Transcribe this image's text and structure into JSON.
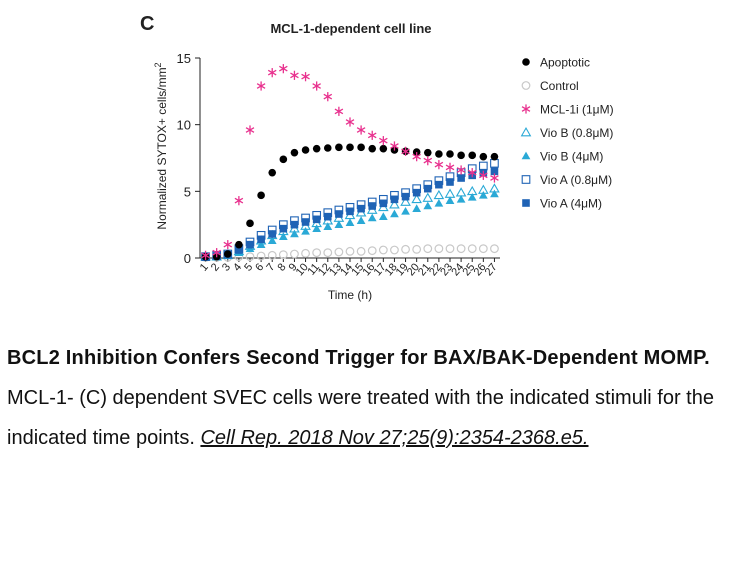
{
  "panel": {
    "label": "C"
  },
  "chart_data": {
    "type": "scatter",
    "title": "MCL-1-dependent cell line",
    "xlabel": "Time (h)",
    "ylabel": "Normalized SYTOX+ cells/mm",
    "ylabel_superscript": "2",
    "xlim": [
      0.5,
      27.5
    ],
    "ylim": [
      0,
      15
    ],
    "yticks": [
      0,
      5,
      10,
      15
    ],
    "ytick_labels": [
      "0",
      "5",
      "10",
      "15"
    ],
    "x": [
      1,
      2,
      3,
      4,
      5,
      6,
      7,
      8,
      9,
      10,
      11,
      12,
      13,
      14,
      15,
      16,
      17,
      18,
      19,
      20,
      21,
      22,
      23,
      24,
      25,
      26,
      27
    ],
    "xtick_labels": [
      "1",
      "2",
      "3",
      "4",
      "5",
      "6",
      "7",
      "8",
      "9",
      "10",
      "11",
      "12",
      "13",
      "14",
      "15",
      "16",
      "17",
      "18",
      "19",
      "20",
      "21",
      "22",
      "23",
      "24",
      "25",
      "26",
      "27"
    ],
    "legend_position": "right",
    "series": [
      {
        "name": "Apoptotic",
        "marker": "circle-filled",
        "color": "#000000",
        "values": [
          0.1,
          0.1,
          0.3,
          1.0,
          2.6,
          4.7,
          6.4,
          7.4,
          7.9,
          8.1,
          8.2,
          8.25,
          8.3,
          8.3,
          8.3,
          8.2,
          8.2,
          8.1,
          8.0,
          7.95,
          7.9,
          7.8,
          7.8,
          7.7,
          7.7,
          7.6,
          7.6
        ]
      },
      {
        "name": "Control",
        "marker": "circle-open",
        "color": "#c8c8c8",
        "values": [
          0.05,
          0.05,
          0.05,
          0.1,
          0.1,
          0.15,
          0.2,
          0.25,
          0.3,
          0.35,
          0.4,
          0.4,
          0.45,
          0.5,
          0.5,
          0.55,
          0.6,
          0.6,
          0.65,
          0.65,
          0.7,
          0.7,
          0.7,
          0.7,
          0.7,
          0.7,
          0.7
        ]
      },
      {
        "name": "MCL-1i (1μM)",
        "marker": "asterisk",
        "color": "#e8318e",
        "values": [
          0.2,
          0.4,
          1.0,
          4.3,
          9.6,
          12.9,
          13.9,
          14.2,
          13.7,
          13.6,
          12.9,
          12.1,
          11.0,
          10.2,
          9.6,
          9.2,
          8.8,
          8.4,
          8.0,
          7.6,
          7.3,
          7.0,
          6.8,
          6.6,
          6.4,
          6.2,
          6.0
        ]
      },
      {
        "name": "Vio B (0.8μM)",
        "marker": "triangle-open",
        "color": "#2aa9d6",
        "values": [
          0.1,
          0.1,
          0.2,
          0.5,
          0.9,
          1.3,
          1.7,
          2.0,
          2.2,
          2.4,
          2.6,
          2.8,
          3.0,
          3.2,
          3.4,
          3.6,
          3.8,
          4.0,
          4.2,
          4.4,
          4.5,
          4.7,
          4.8,
          4.9,
          5.0,
          5.1,
          5.2
        ]
      },
      {
        "name": "Vio B (4μM)",
        "marker": "triangle-filled",
        "color": "#2aa9d6",
        "values": [
          0.1,
          0.1,
          0.2,
          0.4,
          0.7,
          1.0,
          1.3,
          1.6,
          1.8,
          2.0,
          2.2,
          2.35,
          2.5,
          2.65,
          2.8,
          3.0,
          3.1,
          3.3,
          3.5,
          3.7,
          3.9,
          4.1,
          4.3,
          4.4,
          4.55,
          4.7,
          4.8
        ]
      },
      {
        "name": "Vio A (0.8μM)",
        "marker": "square-open",
        "color": "#1f63b5",
        "values": [
          0.1,
          0.2,
          0.3,
          0.7,
          1.2,
          1.7,
          2.1,
          2.5,
          2.8,
          3.0,
          3.2,
          3.4,
          3.6,
          3.8,
          4.0,
          4.2,
          4.4,
          4.7,
          4.9,
          5.2,
          5.5,
          5.8,
          6.1,
          6.4,
          6.7,
          6.9,
          7.1
        ]
      },
      {
        "name": "Vio A (4μM)",
        "marker": "square-filled",
        "color": "#1f63b5",
        "values": [
          0.1,
          0.15,
          0.25,
          0.6,
          1.0,
          1.4,
          1.8,
          2.2,
          2.5,
          2.7,
          2.9,
          3.1,
          3.3,
          3.5,
          3.7,
          3.9,
          4.1,
          4.4,
          4.6,
          4.9,
          5.2,
          5.5,
          5.7,
          6.0,
          6.2,
          6.4,
          6.5
        ]
      }
    ]
  },
  "caption": {
    "title": "BCL2 Inhibition Confers Second Trigger for BAX/BAK-Dependent MOMP.",
    "body": "MCL-1- (C) dependent SVEC cells were treated with the indicated stimuli for the indicated time points.",
    "citation": "Cell Rep. 2018 Nov 27;25(9):2354-2368.e5."
  }
}
